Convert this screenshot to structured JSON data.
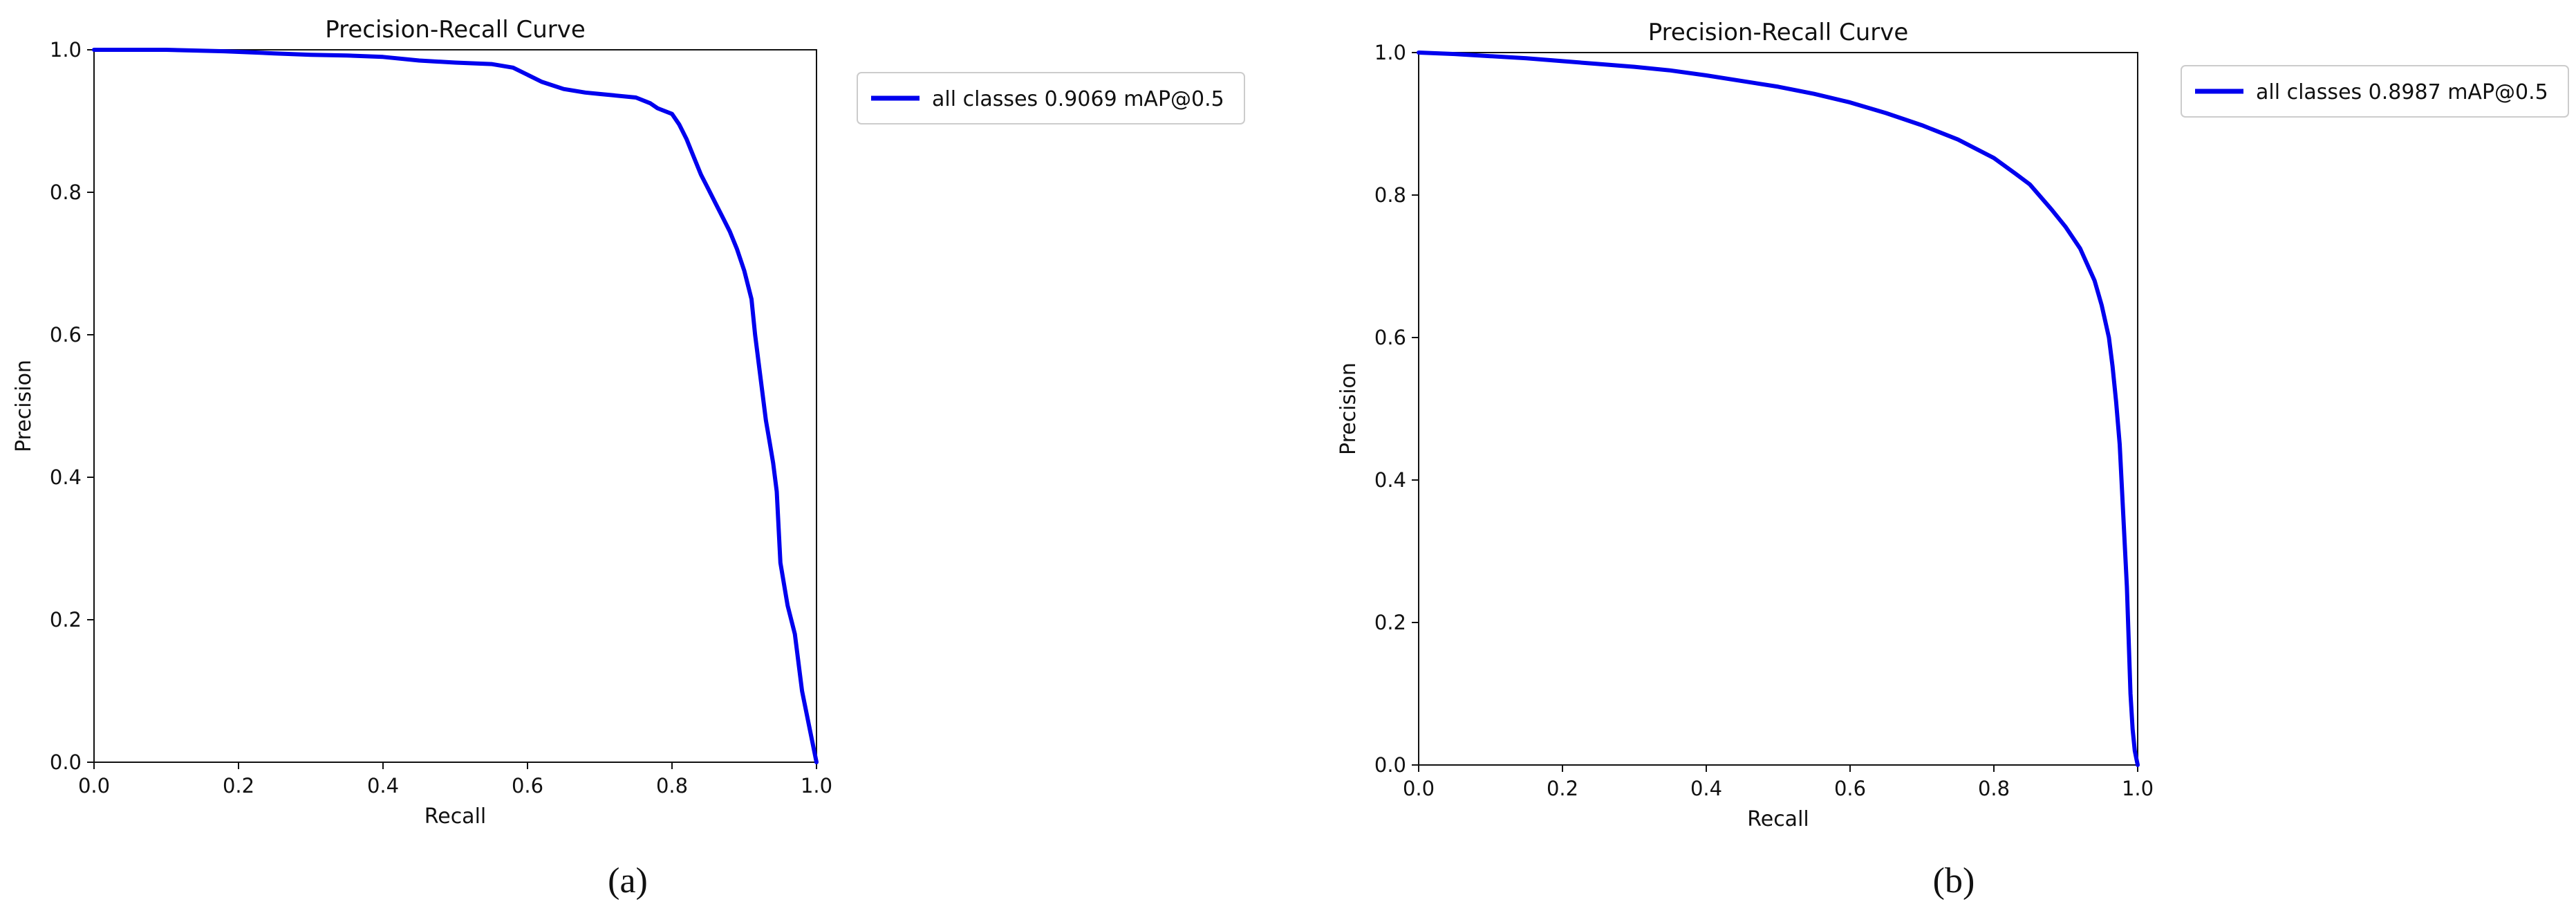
{
  "chart_data": [
    {
      "type": "line",
      "title": "Precision-Recall Curve",
      "xlabel": "Recall",
      "ylabel": "Precision",
      "xlim": [
        0,
        1
      ],
      "ylim": [
        0,
        1
      ],
      "xticks": [
        "0.0",
        "0.2",
        "0.4",
        "0.6",
        "0.8",
        "1.0"
      ],
      "yticks": [
        "0.0",
        "0.2",
        "0.4",
        "0.6",
        "0.8",
        "1.0"
      ],
      "grid": false,
      "legend_position": "outside-top-right",
      "caption": "(a)",
      "series": [
        {
          "name": "all classes 0.9069 mAP@0.5",
          "color": "#0000ee",
          "x": [
            0.0,
            0.1,
            0.18,
            0.25,
            0.3,
            0.35,
            0.4,
            0.45,
            0.5,
            0.55,
            0.58,
            0.6,
            0.62,
            0.65,
            0.68,
            0.7,
            0.72,
            0.75,
            0.77,
            0.78,
            0.8,
            0.81,
            0.82,
            0.83,
            0.84,
            0.85,
            0.86,
            0.87,
            0.88,
            0.89,
            0.9,
            0.91,
            0.915,
            0.92,
            0.925,
            0.93,
            0.935,
            0.94,
            0.945,
            0.95,
            0.96,
            0.97,
            0.98,
            0.99,
            1.0
          ],
          "y": [
            1.0,
            1.0,
            0.998,
            0.995,
            0.993,
            0.992,
            0.99,
            0.985,
            0.982,
            0.98,
            0.975,
            0.965,
            0.955,
            0.945,
            0.94,
            0.938,
            0.936,
            0.933,
            0.925,
            0.918,
            0.91,
            0.895,
            0.875,
            0.85,
            0.825,
            0.805,
            0.785,
            0.765,
            0.745,
            0.72,
            0.69,
            0.65,
            0.6,
            0.56,
            0.52,
            0.48,
            0.45,
            0.42,
            0.38,
            0.28,
            0.22,
            0.18,
            0.1,
            0.05,
            0.0
          ]
        }
      ]
    },
    {
      "type": "line",
      "title": "Precision-Recall Curve",
      "xlabel": "Recall",
      "ylabel": "Precision",
      "xlim": [
        0,
        1
      ],
      "ylim": [
        0,
        1
      ],
      "xticks": [
        "0.0",
        "0.2",
        "0.4",
        "0.6",
        "0.8",
        "1.0"
      ],
      "yticks": [
        "0.0",
        "0.2",
        "0.4",
        "0.6",
        "0.8",
        "1.0"
      ],
      "grid": false,
      "legend_position": "outside-top-right",
      "caption": "(b)",
      "series": [
        {
          "name": "all classes 0.8987 mAP@0.5",
          "color": "#0000ee",
          "x": [
            0.0,
            0.05,
            0.1,
            0.15,
            0.2,
            0.25,
            0.3,
            0.35,
            0.4,
            0.45,
            0.5,
            0.55,
            0.6,
            0.65,
            0.7,
            0.75,
            0.8,
            0.83,
            0.85,
            0.88,
            0.9,
            0.92,
            0.94,
            0.95,
            0.96,
            0.965,
            0.97,
            0.975,
            0.98,
            0.985,
            0.99,
            0.993,
            0.996,
            1.0
          ],
          "y": [
            1.0,
            0.998,
            0.995,
            0.992,
            0.988,
            0.984,
            0.98,
            0.975,
            0.968,
            0.96,
            0.952,
            0.942,
            0.93,
            0.915,
            0.898,
            0.878,
            0.852,
            0.83,
            0.815,
            0.78,
            0.755,
            0.725,
            0.68,
            0.645,
            0.6,
            0.56,
            0.51,
            0.45,
            0.35,
            0.25,
            0.1,
            0.05,
            0.02,
            0.0
          ]
        }
      ]
    }
  ]
}
